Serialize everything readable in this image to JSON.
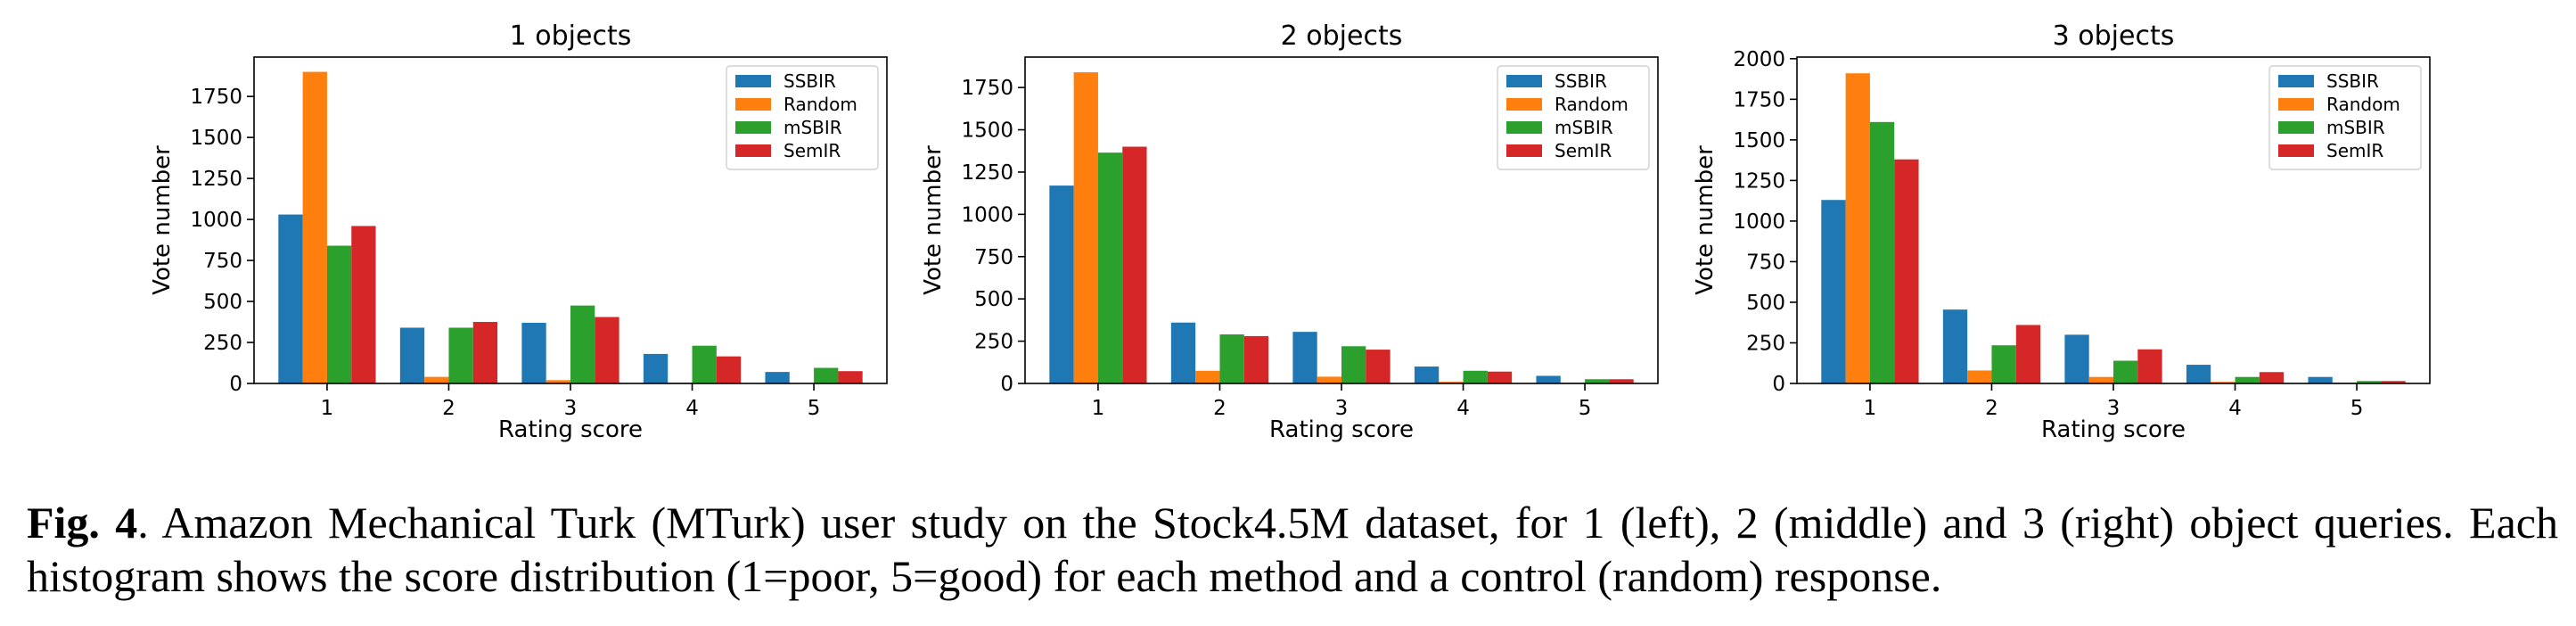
{
  "colors": {
    "SSBIR": "#1f77b4",
    "Random": "#ff7f0e",
    "mSBIR": "#2ca02c",
    "SemIR": "#d62728"
  },
  "caption": {
    "label": "Fig. 4",
    "text": ".  Amazon Mechanical Turk (MTurk) user study on the Stock4.5M dataset, for 1 (left), 2 (middle) and 3 (right) object queries. Each histogram shows the score distribution (1=poor, 5=good) for each method and a control (random) response."
  },
  "chart_data": [
    {
      "type": "bar",
      "title": "1 objects",
      "xlabel": "Rating score",
      "ylabel": "Vote number",
      "categories": [
        "1",
        "2",
        "3",
        "4",
        "5"
      ],
      "yticks": [
        0,
        250,
        500,
        750,
        1000,
        1250,
        1500,
        1750
      ],
      "ytick_labels": [
        "0",
        "250",
        "500",
        "750",
        "1000",
        "1250",
        "1500",
        "1750"
      ],
      "ylim": [
        0,
        1990
      ],
      "legend": "top-right",
      "series": [
        {
          "name": "SSBIR",
          "values": [
            1030,
            340,
            370,
            180,
            70
          ]
        },
        {
          "name": "Random",
          "values": [
            1900,
            40,
            20,
            5,
            2
          ]
        },
        {
          "name": "mSBIR",
          "values": [
            840,
            340,
            475,
            230,
            95
          ]
        },
        {
          "name": "SemIR",
          "values": [
            960,
            375,
            405,
            165,
            75
          ]
        }
      ]
    },
    {
      "type": "bar",
      "title": "2 objects",
      "xlabel": "Rating score",
      "ylabel": "Vote number",
      "categories": [
        "1",
        "2",
        "3",
        "4",
        "5"
      ],
      "yticks": [
        0,
        250,
        500,
        750,
        1000,
        1250,
        1500,
        1750
      ],
      "ytick_labels": [
        "0",
        "250",
        "500",
        "750",
        "1000",
        "1250",
        "1500",
        "1750"
      ],
      "ylim": [
        0,
        1930
      ],
      "legend": "top-right",
      "series": [
        {
          "name": "SSBIR",
          "values": [
            1170,
            360,
            305,
            100,
            45
          ]
        },
        {
          "name": "Random",
          "values": [
            1840,
            75,
            40,
            10,
            5
          ]
        },
        {
          "name": "mSBIR",
          "values": [
            1365,
            290,
            220,
            75,
            25
          ]
        },
        {
          "name": "SemIR",
          "values": [
            1400,
            280,
            200,
            70,
            25
          ]
        }
      ]
    },
    {
      "type": "bar",
      "title": "3 objects",
      "xlabel": "Rating score",
      "ylabel": "Vote number",
      "categories": [
        "1",
        "2",
        "3",
        "4",
        "5"
      ],
      "yticks": [
        0,
        250,
        500,
        750,
        1000,
        1250,
        1500,
        1750,
        2000
      ],
      "ytick_labels": [
        "0",
        "250",
        "500",
        "750",
        "1000",
        "1250",
        "1500",
        "1750",
        "2000"
      ],
      "ylim": [
        0,
        2010
      ],
      "legend": "top-right",
      "series": [
        {
          "name": "SSBIR",
          "values": [
            1130,
            455,
            300,
            115,
            40
          ]
        },
        {
          "name": "Random",
          "values": [
            1910,
            80,
            40,
            10,
            5
          ]
        },
        {
          "name": "mSBIR",
          "values": [
            1610,
            235,
            140,
            40,
            15
          ]
        },
        {
          "name": "SemIR",
          "values": [
            1380,
            360,
            210,
            70,
            15
          ]
        }
      ]
    }
  ]
}
